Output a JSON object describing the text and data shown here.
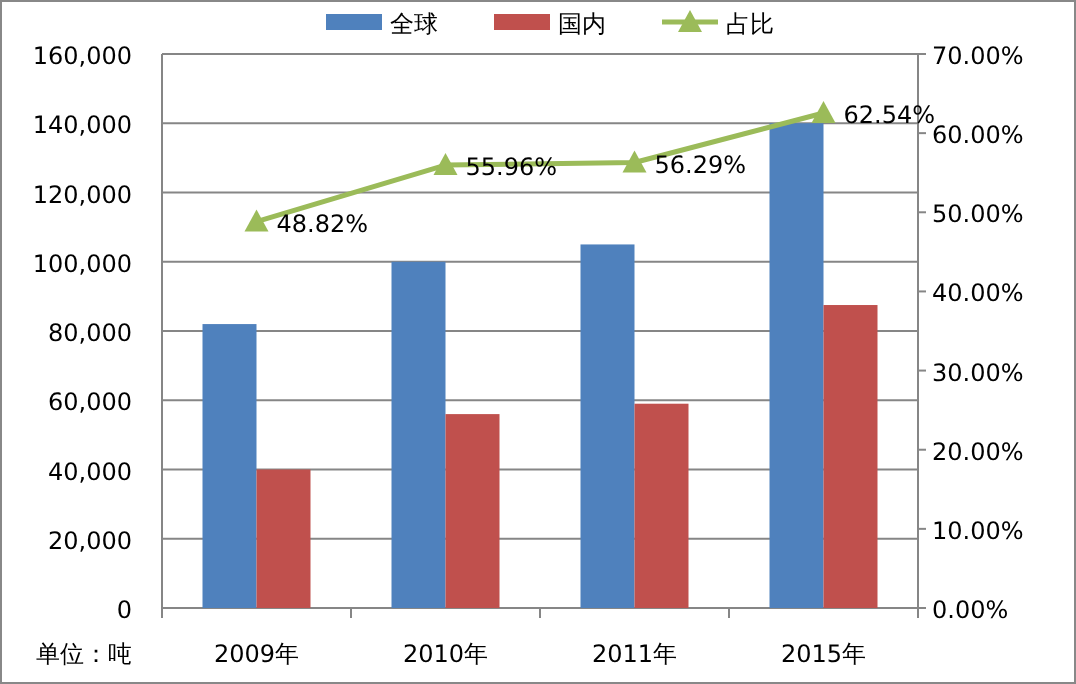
{
  "chart_data": {
    "type": "bar",
    "categories": [
      "2009年",
      "2010年",
      "2011年",
      "2015年"
    ],
    "series": [
      {
        "name": "全球",
        "color": "#4f81bd",
        "values": [
          82000,
          100000,
          105000,
          140000
        ]
      },
      {
        "name": "国内",
        "color": "#c0504d",
        "values": [
          40000,
          56000,
          59000,
          87500
        ]
      },
      {
        "name": "占比",
        "type": "line",
        "axis": "y2",
        "color": "#9bbb59",
        "marker": "triangle",
        "values": [
          48.82,
          55.96,
          56.29,
          62.54
        ],
        "value_labels": [
          "48.82%",
          "55.96%",
          "56.29%",
          "62.54%"
        ]
      }
    ],
    "ylim": [
      0,
      160000
    ],
    "yticks": [
      {
        "value": 0,
        "label": "0"
      },
      {
        "value": 20000,
        "label": "20,000"
      },
      {
        "value": 40000,
        "label": "40,000"
      },
      {
        "value": 60000,
        "label": "60,000"
      },
      {
        "value": 80000,
        "label": "80,000"
      },
      {
        "value": 100000,
        "label": "100,000"
      },
      {
        "value": 120000,
        "label": "120,000"
      },
      {
        "value": 140000,
        "label": "140,000"
      },
      {
        "value": 160000,
        "label": "160,000"
      }
    ],
    "y2lim": [
      0,
      70
    ],
    "y2ticks": [
      {
        "value": 0,
        "label": "0.00%"
      },
      {
        "value": 10,
        "label": "10.00%"
      },
      {
        "value": 20,
        "label": "20.00%"
      },
      {
        "value": 30,
        "label": "30.00%"
      },
      {
        "value": 40,
        "label": "40.00%"
      },
      {
        "value": 50,
        "label": "50.00%"
      },
      {
        "value": 60,
        "label": "60.00%"
      },
      {
        "value": 70,
        "label": "70.00%"
      }
    ],
    "grid": "y",
    "legend": "top",
    "annotations": [
      "单位：吨"
    ]
  }
}
